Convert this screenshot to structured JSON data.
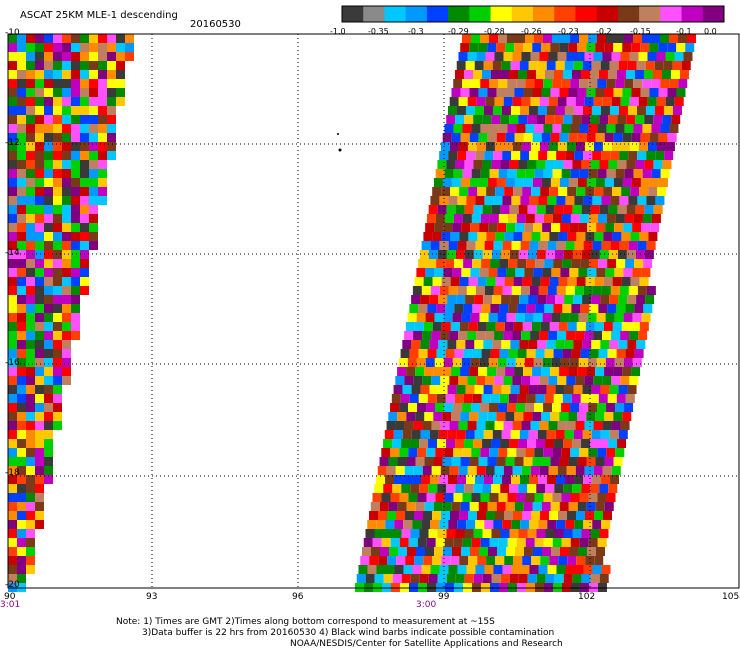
{
  "header": {
    "title": "ASCAT 25KM MLE-1 descending",
    "date": "20160530"
  },
  "colorbar": {
    "labels": [
      "-1.0",
      "-0.35",
      "-0.3",
      "-0.29",
      "-0.28",
      "-0.26",
      "-0.23",
      "-0.2",
      "-0.15",
      "-0.1",
      "0.0"
    ],
    "colors": [
      "#3a3a3a",
      "#8a8a8a",
      "#00c8ff",
      "#0099ff",
      "#0040ff",
      "#008a00",
      "#00d000",
      "#ffff00",
      "#ffc800",
      "#ff8c00",
      "#ff4000",
      "#ff0000",
      "#c80000",
      "#7a3a1a",
      "#c08060",
      "#ff50ff",
      "#c000c0",
      "#800080"
    ]
  },
  "axes": {
    "x_ticks": [
      "90",
      "93",
      "96",
      "99",
      "102",
      "105"
    ],
    "y_ticks": [
      "-10",
      "-12",
      "-14",
      "-16",
      "-18",
      "-20"
    ],
    "x_range": [
      90,
      105
    ],
    "y_range": [
      -20,
      -10
    ]
  },
  "times": {
    "left": "3:01",
    "mid": "3:00"
  },
  "notes": {
    "line1": "Note: 1) Times are GMT 2)Times along bottom correspond to measurement at ~15S",
    "line2": "3)Data buffer is 22 hrs from 20160530 4) Black wind barbs indicate possible contamination",
    "line3": "NOAA/NESDIS/Center for Satellite Applications and Research"
  }
}
